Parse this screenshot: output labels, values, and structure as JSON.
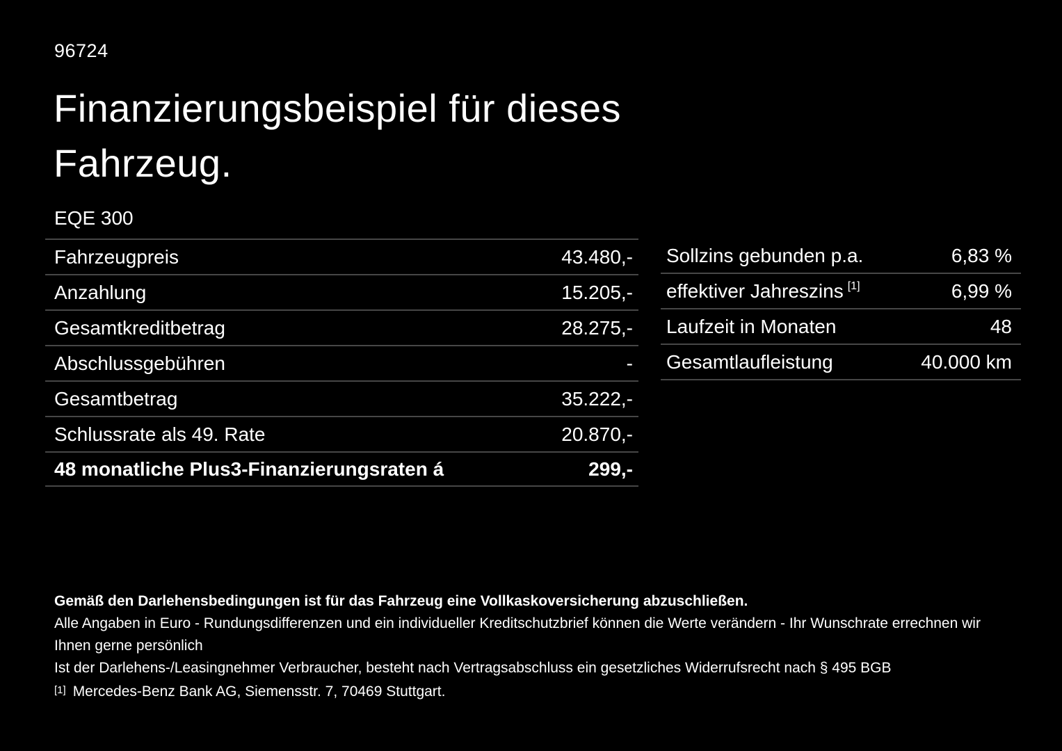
{
  "header": {
    "doc_number": "96724",
    "title_line1": "Finanzierungsbeispiel für dieses",
    "title_line2": "Fahrzeug.",
    "model": "EQE 300"
  },
  "financing_table": {
    "rows": [
      {
        "label": "Fahrzeugpreis",
        "value": "43.480,-"
      },
      {
        "label": "Anzahlung",
        "value": "15.205,-"
      },
      {
        "label": "Gesamtkreditbetrag",
        "value": "28.275,-"
      },
      {
        "label": "Abschlussgebühren",
        "value": "-"
      },
      {
        "label": "Gesamtbetrag",
        "value": "35.222,-"
      },
      {
        "label": "Schlussrate als 49. Rate",
        "value": "20.870,-"
      },
      {
        "label": "48 monatliche Plus3-Finanzierungsraten á",
        "value": "299,-"
      }
    ]
  },
  "conditions_table": {
    "rows": [
      {
        "label": "Sollzins gebunden p.a.",
        "value": "6,83 %"
      },
      {
        "label": "effektiver Jahreszins",
        "footnote_ref": "[1]",
        "value": "6,99 %"
      },
      {
        "label": "Laufzeit in Monaten",
        "value": "48"
      },
      {
        "label": "Gesamtlaufleistung",
        "value": "40.000 km"
      }
    ]
  },
  "footer": {
    "insurance_note": "Gemäß den Darlehensbedingungen ist für das Fahrzeug eine Vollkaskoversicherung abzuschließen.",
    "disclaimer_line1": "Alle Angaben in Euro - Rundungsdifferenzen und ein individueller Kreditschutzbrief können die Werte verändern - Ihr Wunschrate errechnen wir Ihnen gerne persönlich",
    "disclaimer_line2": "Ist der Darlehens-/Leasingnehmer Verbraucher, besteht nach Vertragsabschluss ein gesetzliches Widerrufsrecht nach § 495 BGB",
    "footnote_marker": "[1]",
    "footnote_text": "Mercedes-Benz Bank AG, Siemensstr. 7, 70469 Stuttgart."
  },
  "colors": {
    "background": "#000000",
    "text": "#ffffff",
    "divider": "#474747"
  }
}
